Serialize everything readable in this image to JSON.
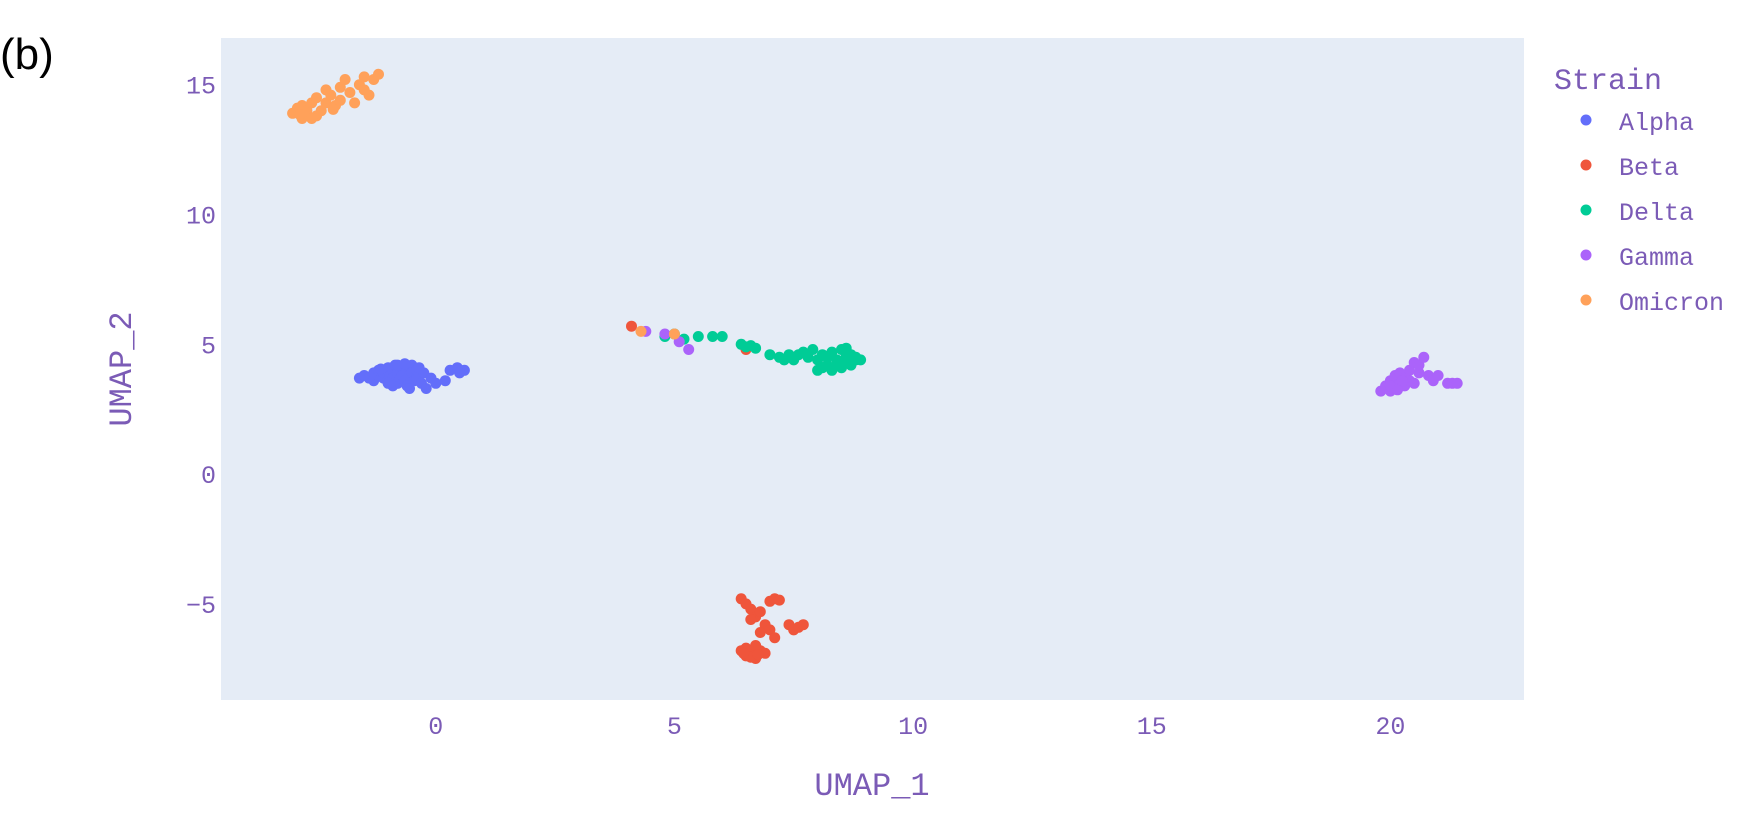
{
  "panel_label": "(b)",
  "colors": {
    "plot_bg": "#E5ECF6",
    "text": "#7B5BB6",
    "Alpha": "#636EFA",
    "Beta": "#EF553B",
    "Delta": "#00CC96",
    "Gamma": "#AB63FA",
    "Omicron": "#FFA15A"
  },
  "chart_data": {
    "type": "scatter",
    "title": "",
    "xlabel": "UMAP_1",
    "ylabel": "UMAP_2",
    "xlim": [
      -4.5,
      22.8
    ],
    "ylim": [
      -8.7,
      16.8
    ],
    "xticks": [
      0,
      5,
      10,
      15,
      20
    ],
    "yticks": [
      -5,
      0,
      5,
      10,
      15
    ],
    "xtick_labels": [
      "0",
      "5",
      "10",
      "15",
      "20"
    ],
    "ytick_labels": [
      "−5",
      "0",
      "5",
      "10",
      "15"
    ],
    "grid": false,
    "legend": {
      "title": "Strain",
      "placement": "top-right outside",
      "entries": [
        "Alpha",
        "Beta",
        "Delta",
        "Gamma",
        "Omicron"
      ]
    },
    "series": [
      {
        "name": "Alpha",
        "color": "#636EFA",
        "points": [
          [
            -1.6,
            3.7
          ],
          [
            -1.5,
            3.8
          ],
          [
            -1.4,
            3.7
          ],
          [
            -1.3,
            3.9
          ],
          [
            -1.3,
            3.6
          ],
          [
            -1.2,
            3.8
          ],
          [
            -1.2,
            4.0
          ],
          [
            -1.1,
            3.7
          ],
          [
            -1.1,
            3.9
          ],
          [
            -1.0,
            4.1
          ],
          [
            -1.0,
            3.6
          ],
          [
            -0.95,
            3.8
          ],
          [
            -0.9,
            4.0
          ],
          [
            -0.9,
            3.7
          ],
          [
            -0.85,
            4.2
          ],
          [
            -0.8,
            3.9
          ],
          [
            -0.8,
            3.5
          ],
          [
            -0.75,
            3.7
          ],
          [
            -0.7,
            4.1
          ],
          [
            -0.7,
            3.8
          ],
          [
            -0.65,
            3.6
          ],
          [
            -0.6,
            4.0
          ],
          [
            -0.6,
            3.4
          ],
          [
            -0.55,
            3.8
          ],
          [
            -0.5,
            4.2
          ],
          [
            -0.5,
            3.9
          ],
          [
            -0.45,
            3.6
          ],
          [
            -0.4,
            3.7
          ],
          [
            -0.4,
            4.0
          ],
          [
            -0.35,
            3.8
          ],
          [
            -0.3,
            3.5
          ],
          [
            -0.25,
            3.9
          ],
          [
            -0.2,
            3.3
          ],
          [
            -0.1,
            3.7
          ],
          [
            0.0,
            3.5
          ],
          [
            -1.0,
            3.5
          ],
          [
            -0.8,
            4.2
          ],
          [
            -0.9,
            3.4
          ],
          [
            -1.15,
            4.05
          ],
          [
            -0.65,
            4.25
          ],
          [
            0.2,
            3.6
          ],
          [
            0.3,
            4.0
          ],
          [
            0.45,
            4.1
          ],
          [
            0.6,
            4.0
          ],
          [
            0.5,
            3.9
          ],
          [
            -0.55,
            3.3
          ],
          [
            -0.35,
            4.1
          ]
        ]
      },
      {
        "name": "Beta",
        "color": "#EF553B",
        "points": [
          [
            6.4,
            -4.8
          ],
          [
            6.5,
            -5.0
          ],
          [
            6.6,
            -5.2
          ],
          [
            6.7,
            -5.5
          ],
          [
            6.8,
            -5.3
          ],
          [
            6.6,
            -5.6
          ],
          [
            6.9,
            -5.8
          ],
          [
            7.0,
            -6.0
          ],
          [
            6.8,
            -6.1
          ],
          [
            7.0,
            -4.9
          ],
          [
            7.1,
            -4.8
          ],
          [
            7.2,
            -4.85
          ],
          [
            7.4,
            -5.8
          ],
          [
            7.5,
            -6.0
          ],
          [
            7.6,
            -5.9
          ],
          [
            7.7,
            -5.8
          ],
          [
            6.4,
            -6.8
          ],
          [
            6.5,
            -7.0
          ],
          [
            6.6,
            -6.9
          ],
          [
            6.7,
            -7.1
          ],
          [
            6.8,
            -6.8
          ],
          [
            6.5,
            -6.7
          ],
          [
            6.6,
            -7.05
          ],
          [
            6.7,
            -6.6
          ],
          [
            6.9,
            -6.9
          ],
          [
            7.1,
            -6.3
          ],
          [
            6.45,
            -6.9
          ],
          [
            6.75,
            -6.95
          ],
          [
            4.1,
            5.7
          ],
          [
            6.5,
            4.8
          ]
        ]
      },
      {
        "name": "Delta",
        "color": "#00CC96",
        "points": [
          [
            4.8,
            5.3
          ],
          [
            5.0,
            5.4
          ],
          [
            5.2,
            5.2
          ],
          [
            5.5,
            5.3
          ],
          [
            5.8,
            5.3
          ],
          [
            6.0,
            5.3
          ],
          [
            6.4,
            5.0
          ],
          [
            6.5,
            4.9
          ],
          [
            6.6,
            4.95
          ],
          [
            6.7,
            4.85
          ],
          [
            7.0,
            4.6
          ],
          [
            7.2,
            4.5
          ],
          [
            7.4,
            4.6
          ],
          [
            7.5,
            4.4
          ],
          [
            7.6,
            4.6
          ],
          [
            7.7,
            4.7
          ],
          [
            7.8,
            4.5
          ],
          [
            7.9,
            4.8
          ],
          [
            8.0,
            4.4
          ],
          [
            8.0,
            4.0
          ],
          [
            8.1,
            4.6
          ],
          [
            8.2,
            4.2
          ],
          [
            8.3,
            4.7
          ],
          [
            8.3,
            4.0
          ],
          [
            8.4,
            4.4
          ],
          [
            8.5,
            4.8
          ],
          [
            8.5,
            4.1
          ],
          [
            8.6,
            4.3
          ],
          [
            8.6,
            4.6
          ],
          [
            8.7,
            4.2
          ],
          [
            8.8,
            4.4
          ],
          [
            8.8,
            4.5
          ],
          [
            8.2,
            4.5
          ],
          [
            8.4,
            4.2
          ],
          [
            7.3,
            4.4
          ],
          [
            8.6,
            4.85
          ],
          [
            8.7,
            4.6
          ],
          [
            8.1,
            4.1
          ],
          [
            8.9,
            4.4
          ],
          [
            8.45,
            4.35
          ]
        ]
      },
      {
        "name": "Gamma",
        "color": "#AB63FA",
        "points": [
          [
            4.4,
            5.5
          ],
          [
            4.8,
            5.4
          ],
          [
            5.1,
            5.1
          ],
          [
            5.3,
            4.8
          ],
          [
            19.8,
            3.2
          ],
          [
            19.9,
            3.4
          ],
          [
            20.0,
            3.6
          ],
          [
            20.0,
            3.2
          ],
          [
            20.1,
            3.8
          ],
          [
            20.1,
            3.3
          ],
          [
            20.2,
            3.5
          ],
          [
            20.2,
            3.9
          ],
          [
            20.3,
            3.4
          ],
          [
            20.3,
            3.7
          ],
          [
            20.4,
            4.0
          ],
          [
            20.4,
            3.6
          ],
          [
            20.5,
            4.3
          ],
          [
            20.5,
            3.5
          ],
          [
            20.6,
            3.9
          ],
          [
            20.6,
            4.2
          ],
          [
            20.7,
            4.5
          ],
          [
            20.8,
            3.8
          ],
          [
            20.9,
            3.6
          ],
          [
            21.0,
            3.8
          ],
          [
            21.2,
            3.5
          ],
          [
            21.3,
            3.5
          ],
          [
            21.4,
            3.5
          ],
          [
            20.0,
            3.4
          ],
          [
            20.15,
            3.25
          ],
          [
            20.25,
            3.6
          ]
        ]
      },
      {
        "name": "Omicron",
        "color": "#FFA15A",
        "points": [
          [
            -3.0,
            13.9
          ],
          [
            -2.9,
            14.1
          ],
          [
            -2.8,
            13.7
          ],
          [
            -2.8,
            14.2
          ],
          [
            -2.7,
            14.0
          ],
          [
            -2.6,
            14.3
          ],
          [
            -2.5,
            13.8
          ],
          [
            -2.5,
            14.5
          ],
          [
            -2.4,
            14.0
          ],
          [
            -2.3,
            14.8
          ],
          [
            -2.3,
            14.3
          ],
          [
            -2.2,
            14.6
          ],
          [
            -2.1,
            14.2
          ],
          [
            -2.0,
            14.9
          ],
          [
            -2.0,
            14.4
          ],
          [
            -1.9,
            15.2
          ],
          [
            -1.8,
            14.7
          ],
          [
            -1.7,
            14.3
          ],
          [
            -1.6,
            15.0
          ],
          [
            -1.5,
            14.8
          ],
          [
            -1.5,
            15.3
          ],
          [
            -1.3,
            15.2
          ],
          [
            -1.4,
            14.6
          ],
          [
            -1.2,
            15.4
          ],
          [
            -2.6,
            13.7
          ],
          [
            -2.85,
            13.85
          ],
          [
            -2.15,
            14.05
          ],
          [
            4.3,
            5.5
          ],
          [
            5.0,
            5.4
          ]
        ]
      }
    ]
  }
}
